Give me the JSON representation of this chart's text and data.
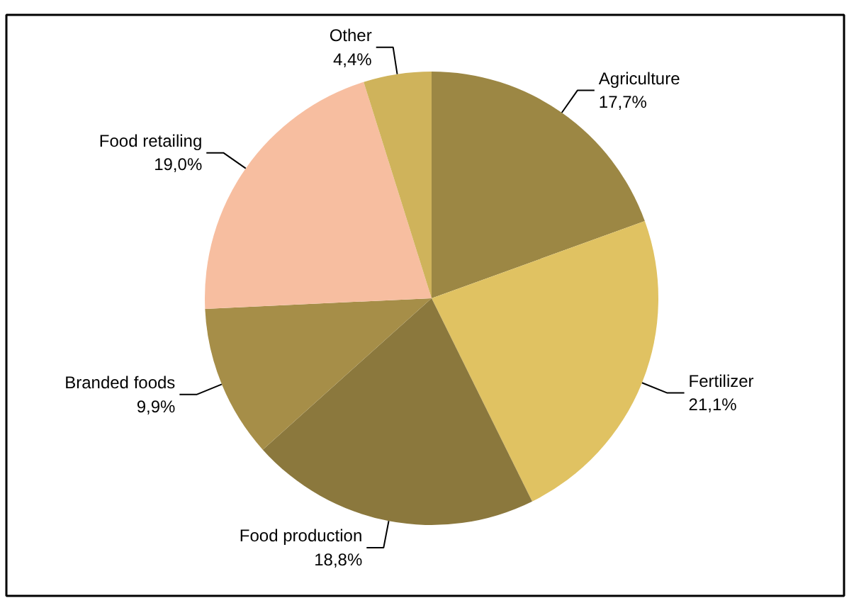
{
  "chart_data": {
    "type": "pie",
    "categories": [
      "Agriculture",
      "Fertilizer",
      "Food production",
      "Branded foods",
      "Food retailing",
      "Other"
    ],
    "values": [
      17.7,
      21.1,
      18.8,
      9.9,
      19.0,
      4.4
    ],
    "value_labels": [
      "17,7%",
      "21,1%",
      "18,8%",
      "9,9%",
      "19,0%",
      "4,4%"
    ],
    "colors": [
      "#9c8744",
      "#e0c262",
      "#8b783d",
      "#a68e48",
      "#f7bea0",
      "#cfb35b"
    ]
  }
}
